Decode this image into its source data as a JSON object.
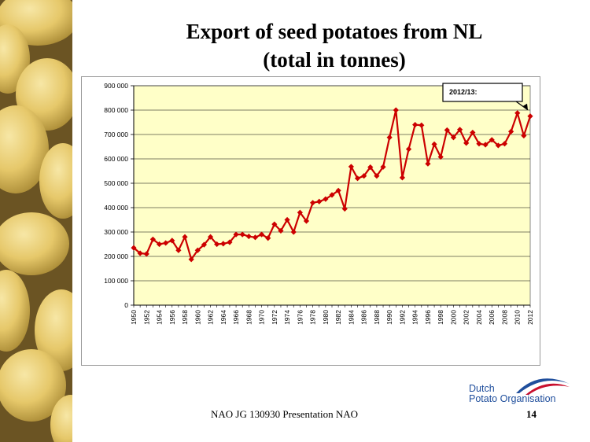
{
  "slide": {
    "title_line1": "Export of seed potatoes from NL",
    "title_line2": "(total in tonnes)",
    "footer": "NAO JG 130930 Presentation NAO",
    "page_number": "14",
    "logo_line1": "Dutch",
    "logo_line2": "Potato Organisation"
  },
  "colors": {
    "plot_background": "#ffffc8",
    "series_line": "#cc0000",
    "gridline": "#000000",
    "logo_blue": "#1f4e9c",
    "logo_red": "#c8102e"
  },
  "chart_data": {
    "type": "line",
    "title": "",
    "xlabel": "",
    "ylabel": "",
    "x": [
      1950,
      1951,
      1952,
      1953,
      1954,
      1955,
      1956,
      1957,
      1958,
      1959,
      1960,
      1961,
      1962,
      1963,
      1964,
      1965,
      1966,
      1967,
      1968,
      1969,
      1970,
      1971,
      1972,
      1973,
      1974,
      1975,
      1976,
      1977,
      1978,
      1979,
      1980,
      1981,
      1982,
      1983,
      1984,
      1985,
      1986,
      1987,
      1988,
      1989,
      1990,
      1991,
      1992,
      1993,
      1994,
      1995,
      1996,
      1997,
      1998,
      1999,
      2000,
      2001,
      2002,
      2003,
      2004,
      2005,
      2006,
      2007,
      2008,
      2009,
      2010,
      2011,
      2012
    ],
    "x_tick_labels": [
      "1950",
      "1952",
      "1954",
      "1956",
      "1958",
      "1960",
      "1962",
      "1964",
      "1966",
      "1968",
      "1970",
      "1972",
      "1974",
      "1976",
      "1978",
      "1980",
      "1982",
      "1984",
      "1986",
      "1988",
      "1990",
      "1992",
      "1994",
      "1996",
      "1998",
      "2000",
      "2002",
      "2004",
      "2006",
      "2008",
      "2010",
      "2012"
    ],
    "series": [
      {
        "values": [
          235000,
          213000,
          210000,
          270000,
          250000,
          255000,
          265000,
          225000,
          280000,
          188000,
          225000,
          248000,
          280000,
          250000,
          252000,
          258000,
          290000,
          290000,
          282000,
          278000,
          290000,
          275000,
          332000,
          305000,
          350000,
          300000,
          380000,
          345000,
          420000,
          425000,
          435000,
          452000,
          470000,
          395000,
          568000,
          520000,
          530000,
          566000,
          530000,
          567000,
          688000,
          800000,
          523000,
          640000,
          740000,
          738000,
          580000,
          660000,
          608000,
          718000,
          688000,
          720000,
          665000,
          708000,
          662000,
          658000,
          678000,
          655000,
          662000,
          712000,
          788000,
          695000,
          775000
        ]
      }
    ],
    "ylim": [
      0,
      900000
    ],
    "y_ticks": [
      0,
      100000,
      200000,
      300000,
      400000,
      500000,
      600000,
      700000,
      800000,
      900000
    ],
    "y_tick_labels": [
      "0",
      "100 000",
      "200 000",
      "300 000",
      "400 000",
      "500 000",
      "600 000",
      "700 000",
      "800 000",
      "900 000"
    ],
    "grid": true,
    "annotation": {
      "text": "2012/13:",
      "target_x": 2012
    }
  }
}
